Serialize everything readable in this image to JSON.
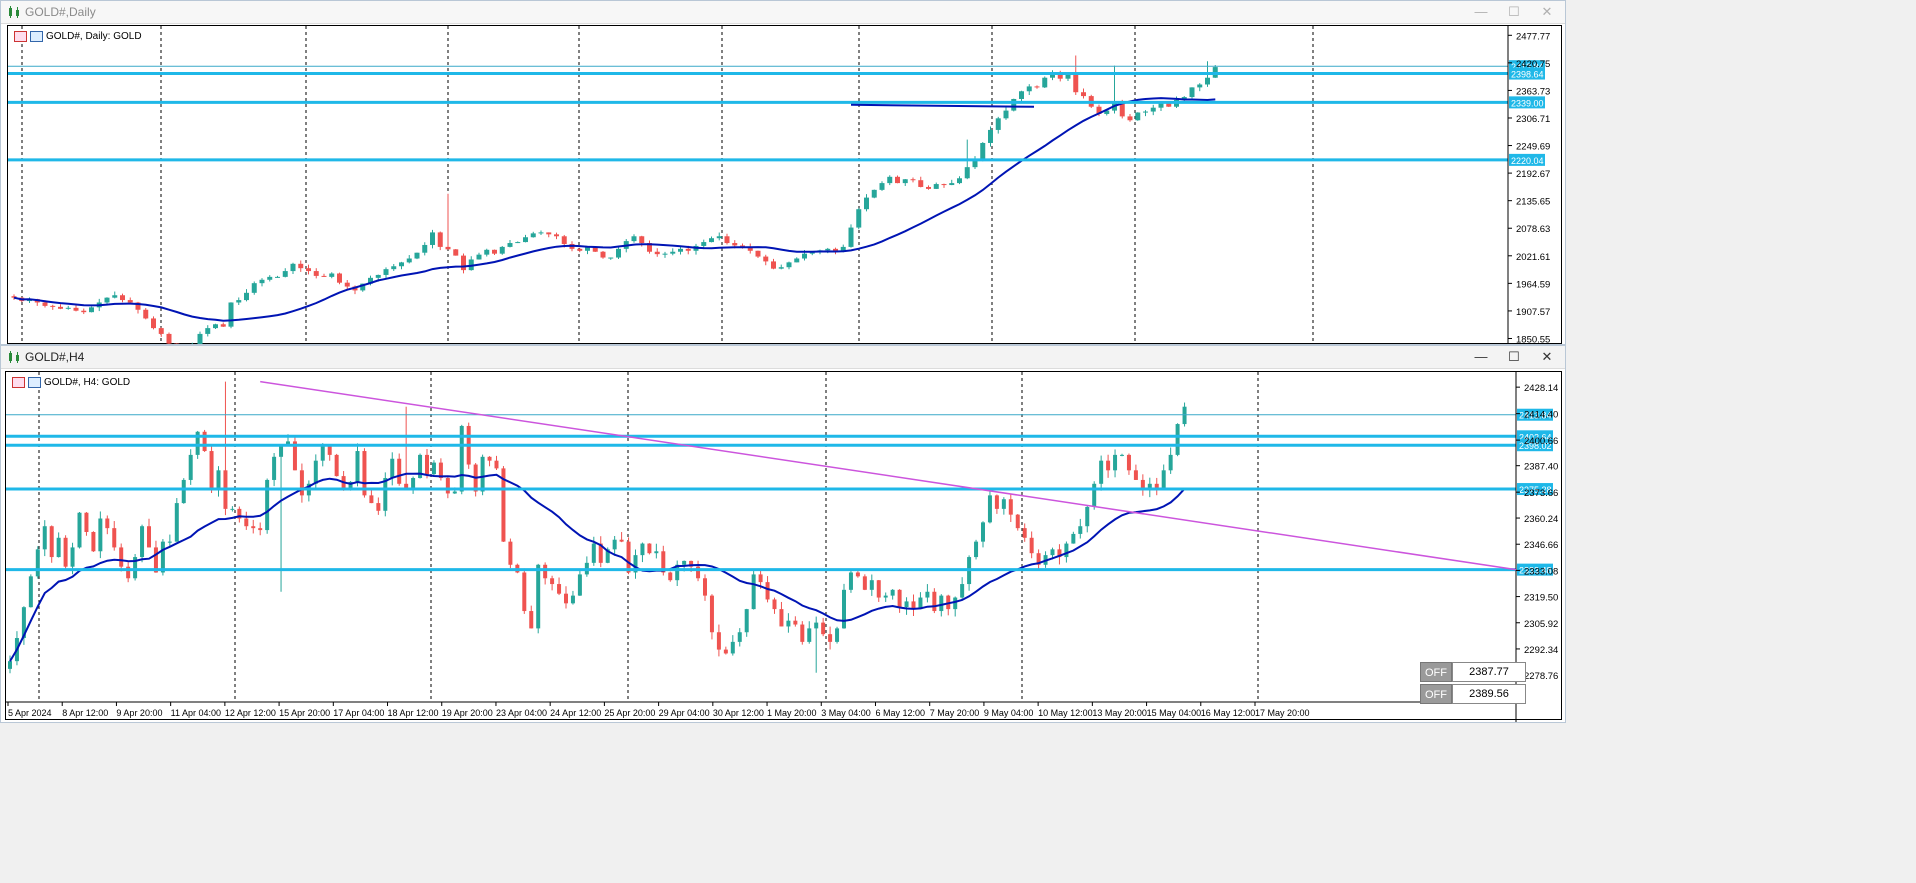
{
  "daily": {
    "window_title": "GOLD#,Daily",
    "header": "GOLD#, Daily:  GOLD",
    "price_min": 1835,
    "price_max": 2497,
    "y_ticks": [
      "2477.77",
      "2420.75",
      "2363.73",
      "2306.71",
      "2249.69",
      "2192.67",
      "2135.65",
      "2078.63",
      "2021.61",
      "1964.59",
      "1907.57",
      "1850.55"
    ],
    "hlines": [
      {
        "price": 2413.84,
        "label": "2413.84",
        "style": "thin"
      },
      {
        "price": 2398.64,
        "label": "2398.64",
        "style": "thick"
      },
      {
        "price": 2339.0,
        "label": "2339.00",
        "style": "thick"
      },
      {
        "price": 2220.04,
        "label": "2220.04",
        "style": "thick"
      }
    ],
    "segment": {
      "start_bar": 108,
      "end_bar": 120,
      "price": 2334
    },
    "closes": [
      1935,
      1928,
      1932,
      1925,
      1918,
      1916,
      1912,
      1914,
      1908,
      1905,
      1915,
      1925,
      1935,
      1940,
      1930,
      1925,
      1910,
      1892,
      1872,
      1860,
      1840,
      1832,
      1830,
      1838,
      1860,
      1872,
      1880,
      1875,
      1925,
      1930,
      1945,
      1965,
      1972,
      1978,
      1978,
      1990,
      2005,
      1996,
      1990,
      1980,
      1978,
      1985,
      1966,
      1958,
      1950,
      1964,
      1976,
      1982,
      1994,
      2000,
      2008,
      2016,
      2028,
      2044,
      2070,
      2040,
      2035,
      2022,
      1992,
      2014,
      2024,
      2034,
      2026,
      2040,
      2048,
      2050,
      2060,
      2068,
      2070,
      2066,
      2062,
      2046,
      2036,
      2032,
      2040,
      2030,
      2018,
      2018,
      2036,
      2052,
      2062,
      2048,
      2030,
      2025,
      2026,
      2030,
      2036,
      2032,
      2042,
      2050,
      2058,
      2062,
      2048,
      2043,
      2040,
      2032,
      2020,
      2010,
      1995,
      1998,
      2008,
      2016,
      2026,
      2030,
      2033,
      2036,
      2032,
      2040,
      2080,
      2118,
      2142,
      2158,
      2172,
      2185,
      2172,
      2180,
      2178,
      2164,
      2160,
      2170,
      2168,
      2172,
      2182,
      2205,
      2222,
      2255,
      2282,
      2306,
      2322,
      2346,
      2362,
      2372,
      2370,
      2390,
      2398,
      2388,
      2396,
      2360,
      2352,
      2330,
      2315,
      2322,
      2340,
      2310,
      2302,
      2318,
      2320,
      2328,
      2338,
      2330,
      2344,
      2350,
      2370,
      2376,
      2390,
      2412
    ]
  },
  "h4": {
    "window_title": "GOLD#,H4",
    "header": "GOLD#, H4:  GOLD",
    "price_min": 2270,
    "price_max": 2436,
    "y_ticks": [
      "2428.14",
      "2414.40",
      "2400.66",
      "2387.40",
      "2373.66",
      "2360.24",
      "2346.66",
      "2333.08",
      "2319.50",
      "2305.92",
      "2292.34",
      "2278.76"
    ],
    "hlines": [
      {
        "price": 2413.84,
        "label": "2413.84",
        "style": "thin"
      },
      {
        "price": 2402.64,
        "label": "2402.64",
        "style": "thick"
      },
      {
        "price": 2398.02,
        "label": "2398.02",
        "style": "thick"
      },
      {
        "price": 2375.28,
        "label": "2375.28",
        "style": "thick"
      },
      {
        "price": 2333.48,
        "label": "2333.48",
        "style": "thick"
      }
    ],
    "trendline": {
      "start_bar": 36,
      "start_price": 2431,
      "end_price": 2333.48
    },
    "x_ticks": [
      "5 Apr 2024",
      "8 Apr 12:00",
      "9 Apr 20:00",
      "11 Apr 04:00",
      "12 Apr 12:00",
      "15 Apr 20:00",
      "17 Apr 04:00",
      "18 Apr 12:00",
      "19 Apr 20:00",
      "23 Apr 04:00",
      "24 Apr 12:00",
      "25 Apr 20:00",
      "29 Apr 04:00",
      "30 Apr 12:00",
      "1 May 20:00",
      "3 May 04:00",
      "6 May 12:00",
      "7 May 20:00",
      "9 May 04:00",
      "10 May 12:00",
      "13 May 20:00",
      "15 May 04:00",
      "16 May 12:00",
      "17 May 20:00"
    ],
    "closes": [
      2286,
      2298,
      2314,
      2330,
      2344,
      2356,
      2340,
      2350,
      2335,
      2345,
      2363,
      2353,
      2343,
      2360,
      2355,
      2345,
      2335,
      2329,
      2340,
      2356,
      2345,
      2332,
      2348,
      2348,
      2368,
      2380,
      2393,
      2405,
      2395,
      2375,
      2385,
      2365,
      2365,
      2360,
      2356,
      2355,
      2354,
      2380,
      2392,
      2398,
      2400,
      2385,
      2372,
      2378,
      2390,
      2398,
      2393,
      2382,
      2376,
      2379,
      2395,
      2372,
      2368,
      2364,
      2381,
      2391,
      2378,
      2375,
      2381,
      2393,
      2383,
      2389,
      2381,
      2373,
      2374,
      2408,
      2388,
      2374,
      2392,
      2390,
      2386,
      2348,
      2336,
      2332,
      2312,
      2303,
      2336,
      2329,
      2326,
      2321,
      2316,
      2320,
      2331,
      2337,
      2347,
      2337,
      2344,
      2349,
      2348,
      2332,
      2341,
      2347,
      2342,
      2343,
      2332,
      2328,
      2336,
      2338,
      2335,
      2329,
      2320,
      2301,
      2292,
      2290,
      2296,
      2301,
      2313,
      2331,
      2327,
      2318,
      2313,
      2304,
      2307,
      2305,
      2296,
      2303,
      2306,
      2300,
      2296,
      2303,
      2323,
      2332,
      2330,
      2323,
      2328,
      2319,
      2320,
      2323,
      2314,
      2317,
      2313,
      2319,
      2322,
      2312,
      2320,
      2313,
      2319,
      2326,
      2340,
      2348,
      2358,
      2372,
      2365,
      2370,
      2362,
      2355,
      2350,
      2342,
      2336,
      2341,
      2344,
      2340,
      2347,
      2352,
      2356,
      2366,
      2378,
      2390,
      2385,
      2393,
      2393,
      2385,
      2380,
      2375,
      2378,
      2376,
      2385,
      2393,
      2409,
      2418
    ]
  },
  "off_panel": {
    "rows": [
      {
        "button": "OFF",
        "value": "2387.77"
      },
      {
        "button": "OFF",
        "value": "2389.56"
      }
    ]
  },
  "window_buttons": {
    "minimize": "—",
    "maximize": "☐",
    "close": "✕"
  },
  "colors": {
    "bull": "#26a69a",
    "bear": "#ef5350",
    "hline": "#1fb8e8",
    "ma": "#0014b4",
    "trend": "#cc55dd",
    "label_bg": "#1fb8e8"
  }
}
